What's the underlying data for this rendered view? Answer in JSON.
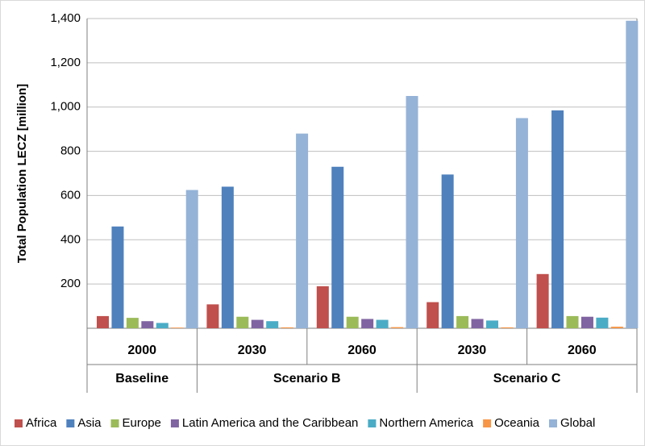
{
  "chart_data": {
    "type": "bar",
    "y_label": "Total Population LECZ [million]",
    "categories": [
      "2000",
      "2030",
      "2060",
      "2030",
      "2060"
    ],
    "category_groups": [
      "Baseline",
      "Scenario B",
      "Scenario B",
      "Scenario C",
      "Scenario C"
    ],
    "series": [
      {
        "name": "Africa",
        "color": "#c0504d",
        "values": [
          55,
          108,
          190,
          118,
          245
        ]
      },
      {
        "name": "Asia",
        "color": "#4f81bd",
        "values": [
          460,
          640,
          730,
          695,
          985
        ]
      },
      {
        "name": "Europe",
        "color": "#9bbb59",
        "values": [
          47,
          52,
          52,
          55,
          55
        ]
      },
      {
        "name": "Latin America and the Caribbean",
        "color": "#8064a2",
        "values": [
          32,
          38,
          42,
          42,
          52
        ]
      },
      {
        "name": "Northern America",
        "color": "#4bacc6",
        "values": [
          24,
          32,
          38,
          35,
          48
        ]
      },
      {
        "name": "Oceania",
        "color": "#f79646",
        "values": [
          3,
          4,
          5,
          4,
          7
        ]
      },
      {
        "name": "Global",
        "color": "#95b3d7",
        "values": [
          625,
          880,
          1050,
          950,
          1390
        ]
      }
    ],
    "ylim": [
      0,
      1400
    ],
    "yticks": [
      200,
      400,
      600,
      800,
      {
        "value": 1000,
        "label": "1,000"
      },
      {
        "value": 1200,
        "label": "1,200"
      },
      {
        "value": 1400,
        "label": "1,400"
      }
    ],
    "grid": true,
    "legend": "bottom"
  }
}
